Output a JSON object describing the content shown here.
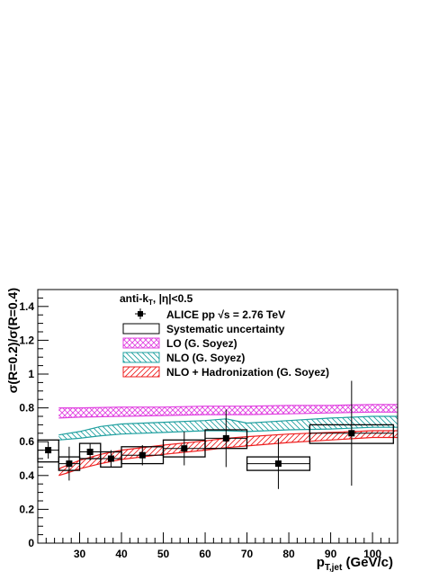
{
  "chart_data": {
    "type": "scatter",
    "title": "",
    "xlabel": "p",
    "xlabel_subscript": "T,jet",
    "xlabel_unit": " (GeV/c)",
    "ylabel": "σ(R=0.2)/σ(R=0.4)",
    "xlim": [
      20,
      106
    ],
    "ylim": [
      0,
      1.5
    ],
    "x_ticks": [
      30,
      40,
      50,
      60,
      70,
      80,
      90,
      100
    ],
    "y_ticks": [
      0,
      0.2,
      0.4,
      0.6,
      0.8,
      1,
      1.2,
      1.4
    ],
    "y_tick_labels": [
      "0",
      "0.2",
      "0.4",
      "0.6",
      "0.8",
      "1",
      "1.2",
      "1.4"
    ],
    "grid": false,
    "legend_position": "top-center",
    "annotation": {
      "prefix": "anti-k",
      "subscript": "T",
      "suffix": ", |η|<0.5"
    },
    "legend": [
      {
        "key": "data",
        "label": "ALICE pp  √s = 2.76 TeV"
      },
      {
        "key": "syst",
        "label": "Systematic uncertainty"
      },
      {
        "key": "lo",
        "label": "LO (G. Soyez)"
      },
      {
        "key": "nlo",
        "label": "NLO (G. Soyez)"
      },
      {
        "key": "nlohad",
        "label": "NLO + Hadronization (G. Soyez)"
      }
    ],
    "series": [
      {
        "name": "ALICE pp  √s = 2.76 TeV",
        "kind": "points",
        "points": [
          {
            "x": 22.5,
            "y": 0.55,
            "xerr": 2.5,
            "yerr_up": 0.05,
            "yerr_down": 0.05,
            "syst_up": 0.06,
            "syst_down": 0.07
          },
          {
            "x": 27.5,
            "y": 0.47,
            "xerr": 2.5,
            "yerr_up": 0.1,
            "yerr_down": 0.1,
            "syst_up": 0.04,
            "syst_down": 0.04
          },
          {
            "x": 32.5,
            "y": 0.54,
            "xerr": 2.5,
            "yerr_up": 0.05,
            "yerr_down": 0.05,
            "syst_up": 0.05,
            "syst_down": 0.04
          },
          {
            "x": 37.5,
            "y": 0.5,
            "xerr": 2.5,
            "yerr_up": 0.05,
            "yerr_down": 0.05,
            "syst_up": 0.04,
            "syst_down": 0.05
          },
          {
            "x": 45.0,
            "y": 0.52,
            "xerr": 5.0,
            "yerr_up": 0.06,
            "yerr_down": 0.06,
            "syst_up": 0.05,
            "syst_down": 0.05
          },
          {
            "x": 55.0,
            "y": 0.56,
            "xerr": 5.0,
            "yerr_up": 0.1,
            "yerr_down": 0.1,
            "syst_up": 0.05,
            "syst_down": 0.05
          },
          {
            "x": 65.0,
            "y": 0.62,
            "xerr": 5.0,
            "yerr_up": 0.17,
            "yerr_down": 0.17,
            "syst_up": 0.05,
            "syst_down": 0.06
          },
          {
            "x": 77.5,
            "y": 0.47,
            "xerr": 7.5,
            "yerr_up": 0.15,
            "yerr_down": 0.15,
            "syst_up": 0.04,
            "syst_down": 0.04
          },
          {
            "x": 95.0,
            "y": 0.65,
            "xerr": 10.0,
            "yerr_up": 0.31,
            "yerr_down": 0.31,
            "syst_up": 0.05,
            "syst_down": 0.06
          }
        ]
      },
      {
        "name": "LO (G. Soyez)",
        "kind": "band",
        "color": "#e040e0",
        "x": [
          25,
          30,
          40,
          50,
          60,
          70,
          80,
          90,
          100,
          106
        ],
        "lower": [
          0.74,
          0.745,
          0.75,
          0.755,
          0.76,
          0.76,
          0.765,
          0.77,
          0.775,
          0.775
        ],
        "upper": [
          0.8,
          0.8,
          0.805,
          0.805,
          0.81,
          0.81,
          0.815,
          0.815,
          0.82,
          0.82
        ]
      },
      {
        "name": "NLO (G. Soyez)",
        "kind": "band",
        "color": "#20a0a0",
        "x": [
          25,
          30,
          35,
          40,
          50,
          60,
          65,
          70,
          80,
          90,
          100,
          106
        ],
        "lower": [
          0.61,
          0.62,
          0.635,
          0.645,
          0.655,
          0.665,
          0.665,
          0.66,
          0.67,
          0.675,
          0.685,
          0.685
        ],
        "upper": [
          0.64,
          0.66,
          0.69,
          0.705,
          0.715,
          0.725,
          0.735,
          0.71,
          0.725,
          0.74,
          0.75,
          0.75
        ]
      },
      {
        "name": "NLO + Hadronization (G. Soyez)",
        "kind": "band",
        "color": "#ee2020",
        "x": [
          25,
          27,
          30,
          35,
          40,
          50,
          60,
          65,
          70,
          80,
          90,
          100,
          106
        ],
        "lower": [
          0.4,
          0.415,
          0.44,
          0.47,
          0.495,
          0.525,
          0.55,
          0.565,
          0.575,
          0.595,
          0.61,
          0.625,
          0.625
        ],
        "upper": [
          0.44,
          0.46,
          0.49,
          0.525,
          0.55,
          0.58,
          0.605,
          0.62,
          0.63,
          0.645,
          0.655,
          0.665,
          0.665
        ]
      }
    ]
  }
}
